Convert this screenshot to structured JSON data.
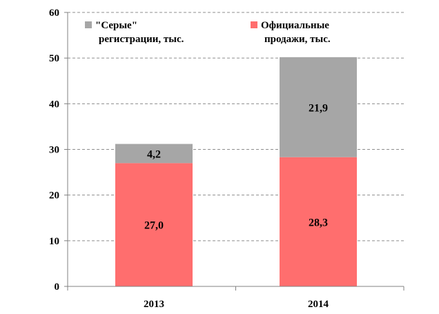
{
  "chart_data": {
    "type": "bar",
    "stacked": true,
    "categories": [
      "2013",
      "2014"
    ],
    "series": [
      {
        "name": "Официальные продажи, тыс.",
        "legend_lines": [
          "Официальные",
          "продажи, тыс."
        ],
        "values": [
          27.0,
          28.3
        ],
        "value_labels": [
          "27,0",
          "28,3"
        ],
        "color": "#ff6e6e"
      },
      {
        "name": "\"Серые\" регистрации, тыс.",
        "legend_lines": [
          "\"Серые\"",
          "регистрации, тыс."
        ],
        "values": [
          4.2,
          21.9
        ],
        "value_labels": [
          "4,2",
          "21,9"
        ],
        "color": "#a6a6a6"
      }
    ],
    "ylim": [
      0,
      60
    ],
    "yticks": [
      0,
      10,
      20,
      30,
      40,
      50,
      60
    ],
    "grid": "dashed horizontal",
    "legend_position": "top",
    "title": "",
    "xlabel": "",
    "ylabel": ""
  }
}
